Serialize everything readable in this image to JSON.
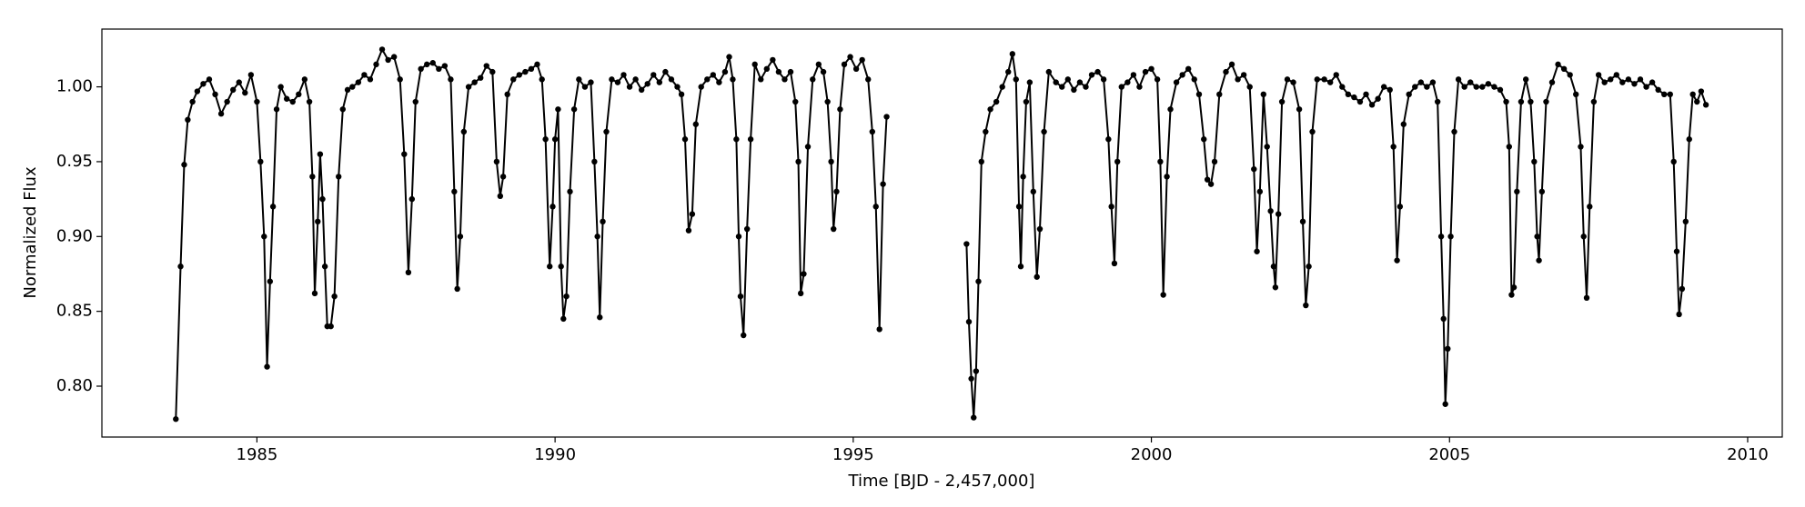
{
  "chart_data": {
    "type": "line",
    "x_label": "Time [BJD - 2,457,000]",
    "y_label": "Normalized Flux",
    "color": "#000000",
    "markers": true,
    "grid": false,
    "xlim": [
      1982.4,
      2010.58
    ],
    "ylim": [
      0.766,
      1.0386
    ],
    "xticks": [
      1985,
      1990,
      1995,
      2000,
      2005,
      2010
    ],
    "yticks": [
      {
        "value": 0.8,
        "label": "0.80"
      },
      {
        "value": 0.85,
        "label": "0.85"
      },
      {
        "value": 0.9,
        "label": "0.90"
      },
      0.95,
      {
        "value": 1,
        "label": "1.00"
      }
    ],
    "x": [
      1983.64,
      1983.72,
      1983.78,
      1983.84,
      1983.92,
      1984.0,
      1984.1,
      1984.2,
      1984.3,
      1984.4,
      1984.5,
      1984.6,
      1984.7,
      1984.8,
      1984.9,
      1985.0,
      1985.06,
      1985.12,
      1985.17,
      1985.22,
      1985.27,
      1985.33,
      1985.4,
      1985.5,
      1985.6,
      1985.7,
      1985.8,
      1985.88,
      1985.93,
      1985.97,
      1986.02,
      1986.06,
      1986.1,
      1986.14,
      1986.18,
      1986.24,
      1986.3,
      1986.37,
      1986.44,
      1986.52,
      1986.6,
      1986.7,
      1986.8,
      1986.9,
      1987.0,
      1987.1,
      1987.2,
      1987.3,
      1987.4,
      1987.47,
      1987.54,
      1987.6,
      1987.66,
      1987.75,
      1987.85,
      1987.95,
      1988.05,
      1988.15,
      1988.25,
      1988.31,
      1988.36,
      1988.41,
      1988.47,
      1988.55,
      1988.65,
      1988.75,
      1988.85,
      1988.95,
      1989.02,
      1989.08,
      1989.13,
      1989.2,
      1989.3,
      1989.4,
      1989.5,
      1989.6,
      1989.7,
      1989.78,
      1989.84,
      1989.91,
      1989.96,
      1990.0,
      1990.05,
      1990.1,
      1990.14,
      1990.19,
      1990.25,
      1990.32,
      1990.4,
      1990.5,
      1990.6,
      1990.66,
      1990.71,
      1990.75,
      1990.8,
      1990.86,
      1990.95,
      1991.05,
      1991.15,
      1991.25,
      1991.35,
      1991.45,
      1991.55,
      1991.65,
      1991.75,
      1991.85,
      1991.95,
      1992.05,
      1992.12,
      1992.18,
      1992.24,
      1992.3,
      1992.36,
      1992.45,
      1992.55,
      1992.65,
      1992.75,
      1992.85,
      1992.92,
      1992.98,
      1993.04,
      1993.08,
      1993.11,
      1993.16,
      1993.22,
      1993.28,
      1993.35,
      1993.45,
      1993.55,
      1993.65,
      1993.75,
      1993.85,
      1993.95,
      1994.03,
      1994.08,
      1994.12,
      1994.17,
      1994.24,
      1994.32,
      1994.42,
      1994.5,
      1994.57,
      1994.63,
      1994.67,
      1994.72,
      1994.78,
      1994.85,
      1994.95,
      1995.05,
      1995.15,
      1995.25,
      1995.32,
      1995.38,
      1995.44,
      1995.5,
      1995.56,
      1996.2,
      1996.9,
      1996.94,
      1996.98,
      1997.02,
      1997.06,
      1997.1,
      1997.15,
      1997.22,
      1997.3,
      1997.4,
      1997.5,
      1997.6,
      1997.67,
      1997.73,
      1997.78,
      1997.81,
      1997.85,
      1997.9,
      1997.96,
      1998.02,
      1998.08,
      1998.13,
      1998.2,
      1998.28,
      1998.4,
      1998.5,
      1998.6,
      1998.7,
      1998.8,
      1998.9,
      1999.0,
      1999.1,
      1999.2,
      1999.28,
      1999.33,
      1999.38,
      1999.43,
      1999.5,
      1999.6,
      1999.7,
      1999.8,
      1999.9,
      2000.0,
      2000.1,
      2000.15,
      2000.2,
      2000.26,
      2000.32,
      2000.42,
      2000.52,
      2000.62,
      2000.72,
      2000.8,
      2000.88,
      2000.94,
      2001.0,
      2001.06,
      2001.14,
      2001.25,
      2001.35,
      2001.45,
      2001.55,
      2001.65,
      2001.72,
      2001.77,
      2001.82,
      2001.88,
      2001.94,
      2002.0,
      2002.05,
      2002.08,
      2002.13,
      2002.19,
      2002.28,
      2002.38,
      2002.48,
      2002.54,
      2002.59,
      2002.64,
      2002.7,
      2002.78,
      2002.9,
      2003.0,
      2003.1,
      2003.2,
      2003.3,
      2003.4,
      2003.5,
      2003.6,
      2003.7,
      2003.8,
      2003.9,
      2004.0,
      2004.06,
      2004.12,
      2004.17,
      2004.23,
      2004.32,
      2004.42,
      2004.52,
      2004.62,
      2004.72,
      2004.8,
      2004.86,
      2004.9,
      2004.93,
      2004.97,
      2005.02,
      2005.08,
      2005.15,
      2005.25,
      2005.35,
      2005.45,
      2005.55,
      2005.65,
      2005.75,
      2005.85,
      2005.95,
      2006.0,
      2006.04,
      2006.08,
      2006.13,
      2006.2,
      2006.28,
      2006.36,
      2006.42,
      2006.47,
      2006.5,
      2006.55,
      2006.62,
      2006.72,
      2006.82,
      2006.92,
      2007.02,
      2007.12,
      2007.2,
      2007.25,
      2007.3,
      2007.35,
      2007.42,
      2007.5,
      2007.6,
      2007.7,
      2007.8,
      2007.9,
      2008.0,
      2008.1,
      2008.2,
      2008.3,
      2008.4,
      2008.5,
      2008.6,
      2008.7,
      2008.76,
      2008.81,
      2008.85,
      2008.9,
      2008.96,
      2009.02,
      2009.08,
      2009.15,
      2009.22,
      2009.3
    ],
    "values": [
      0.778,
      0.88,
      0.948,
      0.978,
      0.99,
      0.997,
      1.002,
      1.005,
      0.995,
      0.982,
      0.99,
      0.998,
      1.003,
      0.996,
      1.008,
      0.99,
      0.95,
      0.9,
      0.813,
      0.87,
      0.92,
      0.985,
      1.0,
      0.992,
      0.99,
      0.995,
      1.005,
      0.99,
      0.94,
      0.862,
      0.91,
      0.955,
      0.925,
      0.88,
      0.84,
      0.84,
      0.86,
      0.94,
      0.985,
      0.998,
      1.0,
      1.003,
      1.008,
      1.005,
      1.015,
      1.025,
      1.018,
      1.02,
      1.005,
      0.955,
      0.876,
      0.925,
      0.99,
      1.012,
      1.015,
      1.016,
      1.012,
      1.014,
      1.005,
      0.93,
      0.865,
      0.9,
      0.97,
      1.0,
      1.003,
      1.006,
      1.014,
      1.01,
      0.95,
      0.927,
      0.94,
      0.995,
      1.005,
      1.008,
      1.01,
      1.012,
      1.015,
      1.005,
      0.965,
      0.88,
      0.92,
      0.965,
      0.985,
      0.88,
      0.845,
      0.86,
      0.93,
      0.985,
      1.005,
      1.0,
      1.003,
      0.95,
      0.9,
      0.846,
      0.91,
      0.97,
      1.005,
      1.003,
      1.008,
      1.0,
      1.005,
      0.998,
      1.002,
      1.008,
      1.003,
      1.01,
      1.005,
      1.0,
      0.995,
      0.965,
      0.904,
      0.915,
      0.975,
      1.0,
      1.005,
      1.008,
      1.003,
      1.01,
      1.02,
      1.005,
      0.965,
      0.9,
      0.86,
      0.834,
      0.905,
      0.965,
      1.015,
      1.005,
      1.012,
      1.018,
      1.01,
      1.005,
      1.01,
      0.99,
      0.95,
      0.862,
      0.875,
      0.96,
      1.005,
      1.015,
      1.01,
      0.99,
      0.95,
      0.905,
      0.93,
      0.985,
      1.015,
      1.02,
      1.012,
      1.018,
      1.005,
      0.97,
      0.92,
      0.838,
      0.935,
      0.98,
      null,
      0.895,
      0.843,
      0.805,
      0.779,
      0.81,
      0.87,
      0.95,
      0.97,
      0.985,
      0.99,
      1.0,
      1.01,
      1.022,
      1.005,
      0.92,
      0.88,
      0.94,
      0.99,
      1.003,
      0.93,
      0.873,
      0.905,
      0.97,
      1.01,
      1.003,
      1.0,
      1.005,
      0.998,
      1.003,
      1.0,
      1.008,
      1.01,
      1.005,
      0.965,
      0.92,
      0.882,
      0.95,
      1.0,
      1.003,
      1.008,
      1.0,
      1.01,
      1.012,
      1.005,
      0.95,
      0.861,
      0.94,
      0.985,
      1.003,
      1.008,
      1.012,
      1.005,
      0.995,
      0.965,
      0.938,
      0.935,
      0.95,
      0.995,
      1.01,
      1.015,
      1.005,
      1.008,
      1.0,
      0.945,
      0.89,
      0.93,
      0.995,
      0.96,
      0.917,
      0.88,
      0.866,
      0.915,
      0.99,
      1.005,
      1.003,
      0.985,
      0.91,
      0.854,
      0.88,
      0.97,
      1.005,
      1.005,
      1.003,
      1.008,
      1.0,
      0.995,
      0.993,
      0.99,
      0.995,
      0.988,
      0.992,
      1.0,
      0.998,
      0.96,
      0.884,
      0.92,
      0.975,
      0.995,
      1.0,
      1.003,
      1.0,
      1.003,
      0.99,
      0.9,
      0.845,
      0.788,
      0.825,
      0.9,
      0.97,
      1.005,
      1.0,
      1.003,
      1.0,
      1.0,
      1.002,
      1.0,
      0.998,
      0.99,
      0.96,
      0.861,
      0.866,
      0.93,
      0.99,
      1.005,
      0.99,
      0.95,
      0.9,
      0.884,
      0.93,
      0.99,
      1.003,
      1.015,
      1.012,
      1.008,
      0.995,
      0.96,
      0.9,
      0.859,
      0.92,
      0.99,
      1.008,
      1.003,
      1.005,
      1.008,
      1.003,
      1.005,
      1.002,
      1.005,
      1.0,
      1.003,
      0.998,
      0.995,
      0.995,
      0.95,
      0.89,
      0.848,
      0.865,
      0.91,
      0.965,
      0.995,
      0.99,
      0.997,
      0.988
    ]
  }
}
